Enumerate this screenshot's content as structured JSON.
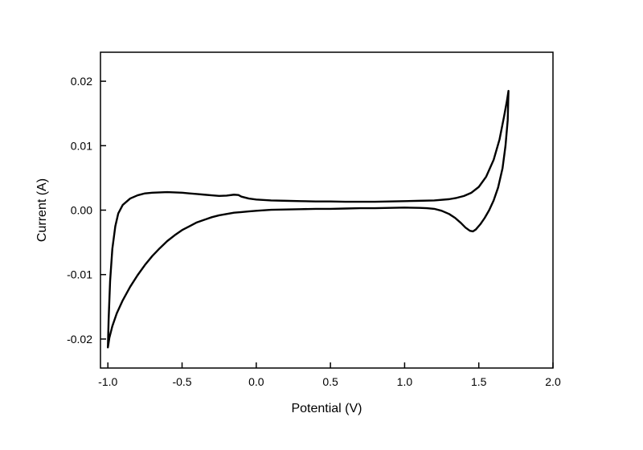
{
  "chart_data": {
    "type": "line",
    "title": "",
    "xlabel": "Potential (V)",
    "ylabel": "Current (A)",
    "xlim": [
      -1.05,
      2.0
    ],
    "ylim": [
      -0.0245,
      0.0245
    ],
    "grid": false,
    "legend": "none",
    "line_color": "#000000",
    "line_width": 2.4,
    "x_ticks": {
      "values": [
        -1.0,
        -0.5,
        0.0,
        0.5,
        1.0,
        1.5,
        2.0
      ],
      "labels": [
        "-1.0",
        "-0.5",
        "0.0",
        "0.5",
        "1.0",
        "1.5",
        "2.0"
      ]
    },
    "y_ticks": {
      "values": [
        -0.02,
        -0.01,
        0.0,
        0.01,
        0.02
      ],
      "labels": [
        "-0.02",
        "-0.01",
        "0.00",
        "0.01",
        "0.02"
      ]
    },
    "series": [
      {
        "name": "cyclic-voltammogram-loop",
        "points": [
          [
            -1.0,
            -0.0213
          ],
          [
            -0.995,
            -0.017
          ],
          [
            -0.985,
            -0.011
          ],
          [
            -0.97,
            -0.006
          ],
          [
            -0.95,
            -0.0025
          ],
          [
            -0.93,
            -0.0005
          ],
          [
            -0.9,
            0.0008
          ],
          [
            -0.85,
            0.0018
          ],
          [
            -0.8,
            0.0023
          ],
          [
            -0.75,
            0.0026
          ],
          [
            -0.7,
            0.0027
          ],
          [
            -0.65,
            0.00275
          ],
          [
            -0.6,
            0.0028
          ],
          [
            -0.55,
            0.00275
          ],
          [
            -0.5,
            0.0027
          ],
          [
            -0.45,
            0.0026
          ],
          [
            -0.4,
            0.0025
          ],
          [
            -0.35,
            0.0024
          ],
          [
            -0.3,
            0.0023
          ],
          [
            -0.25,
            0.0022
          ],
          [
            -0.2,
            0.00225
          ],
          [
            -0.15,
            0.0024
          ],
          [
            -0.12,
            0.00235
          ],
          [
            -0.1,
            0.0021
          ],
          [
            -0.05,
            0.0018
          ],
          [
            0.0,
            0.00165
          ],
          [
            0.1,
            0.0015
          ],
          [
            0.2,
            0.00145
          ],
          [
            0.3,
            0.0014
          ],
          [
            0.4,
            0.00135
          ],
          [
            0.5,
            0.00135
          ],
          [
            0.6,
            0.0013
          ],
          [
            0.7,
            0.0013
          ],
          [
            0.8,
            0.0013
          ],
          [
            0.9,
            0.00135
          ],
          [
            1.0,
            0.0014
          ],
          [
            1.1,
            0.00145
          ],
          [
            1.2,
            0.0015
          ],
          [
            1.3,
            0.0017
          ],
          [
            1.35,
            0.0019
          ],
          [
            1.4,
            0.0022
          ],
          [
            1.45,
            0.0027
          ],
          [
            1.5,
            0.0036
          ],
          [
            1.55,
            0.0052
          ],
          [
            1.6,
            0.0078
          ],
          [
            1.64,
            0.011
          ],
          [
            1.67,
            0.0145
          ],
          [
            1.69,
            0.017
          ],
          [
            1.7,
            0.0185
          ],
          [
            1.695,
            0.014
          ],
          [
            1.68,
            0.01
          ],
          [
            1.66,
            0.0065
          ],
          [
            1.63,
            0.0035
          ],
          [
            1.6,
            0.0015
          ],
          [
            1.57,
            0.0
          ],
          [
            1.54,
            -0.0012
          ],
          [
            1.51,
            -0.0022
          ],
          [
            1.48,
            -0.003
          ],
          [
            1.46,
            -0.0033
          ],
          [
            1.44,
            -0.0032
          ],
          [
            1.41,
            -0.0027
          ],
          [
            1.38,
            -0.002
          ],
          [
            1.34,
            -0.0012
          ],
          [
            1.3,
            -0.0006
          ],
          [
            1.25,
            -0.0001
          ],
          [
            1.2,
            0.0002
          ],
          [
            1.15,
            0.0003
          ],
          [
            1.1,
            0.00035
          ],
          [
            1.0,
            0.0004
          ],
          [
            0.9,
            0.00035
          ],
          [
            0.8,
            0.0003
          ],
          [
            0.7,
            0.0003
          ],
          [
            0.6,
            0.00025
          ],
          [
            0.5,
            0.0002
          ],
          [
            0.4,
            0.0002
          ],
          [
            0.3,
            0.00015
          ],
          [
            0.2,
            0.0001
          ],
          [
            0.1,
            5e-05
          ],
          [
            0.0,
            -0.0001
          ],
          [
            -0.05,
            -0.0002
          ],
          [
            -0.1,
            -0.0003
          ],
          [
            -0.15,
            -0.0004
          ],
          [
            -0.2,
            -0.0006
          ],
          [
            -0.25,
            -0.0008
          ],
          [
            -0.3,
            -0.0011
          ],
          [
            -0.35,
            -0.0015
          ],
          [
            -0.4,
            -0.0019
          ],
          [
            -0.45,
            -0.0025
          ],
          [
            -0.5,
            -0.0031
          ],
          [
            -0.55,
            -0.0039
          ],
          [
            -0.6,
            -0.0048
          ],
          [
            -0.65,
            -0.0059
          ],
          [
            -0.7,
            -0.0071
          ],
          [
            -0.75,
            -0.0085
          ],
          [
            -0.8,
            -0.0101
          ],
          [
            -0.85,
            -0.0119
          ],
          [
            -0.9,
            -0.014
          ],
          [
            -0.94,
            -0.016
          ],
          [
            -0.97,
            -0.018
          ],
          [
            -0.99,
            -0.0198
          ],
          [
            -1.0,
            -0.0213
          ]
        ]
      }
    ]
  }
}
